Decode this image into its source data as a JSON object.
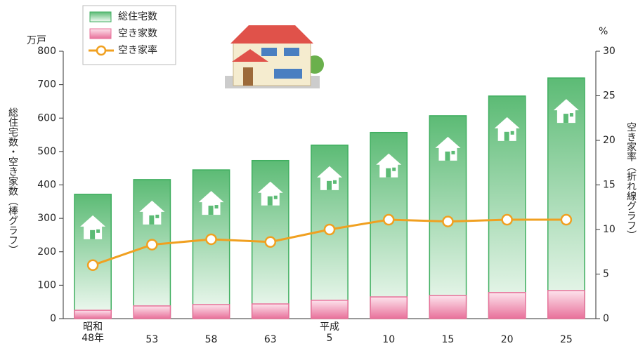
{
  "chart_data": {
    "type": "bar_line",
    "y_label_unit": "万戸",
    "y_label": "総住宅数・空き家数（棒グラフ）",
    "y2_label_unit": "%",
    "y2_label": "空き家率（折れ線グラフ）",
    "categories": [
      "昭和\n48年",
      "53",
      "58",
      "63",
      "平成\n5",
      "10",
      "15",
      "20",
      "25"
    ],
    "series": [
      {
        "name": "総住宅数",
        "kind": "bar",
        "color": "#3fae5f",
        "values": [
          372,
          416,
          445,
          473,
          519,
          557,
          607,
          666,
          720
        ]
      },
      {
        "name": "空き家数",
        "kind": "bar",
        "color": "#e8709a",
        "values": [
          25,
          38,
          42,
          44,
          55,
          65,
          69,
          78,
          84
        ]
      },
      {
        "name": "空き家率",
        "kind": "line",
        "axis": "y2",
        "color": "#f0a020",
        "values": [
          6.0,
          8.3,
          8.9,
          8.6,
          10.0,
          11.1,
          10.9,
          11.1,
          11.1
        ]
      }
    ],
    "ylim": [
      0,
      800
    ],
    "yticks": [
      0,
      100,
      200,
      300,
      400,
      500,
      600,
      700,
      800
    ],
    "y2lim": [
      0,
      30
    ],
    "y2ticks": [
      0,
      5,
      10,
      15,
      20,
      25,
      30
    ]
  }
}
